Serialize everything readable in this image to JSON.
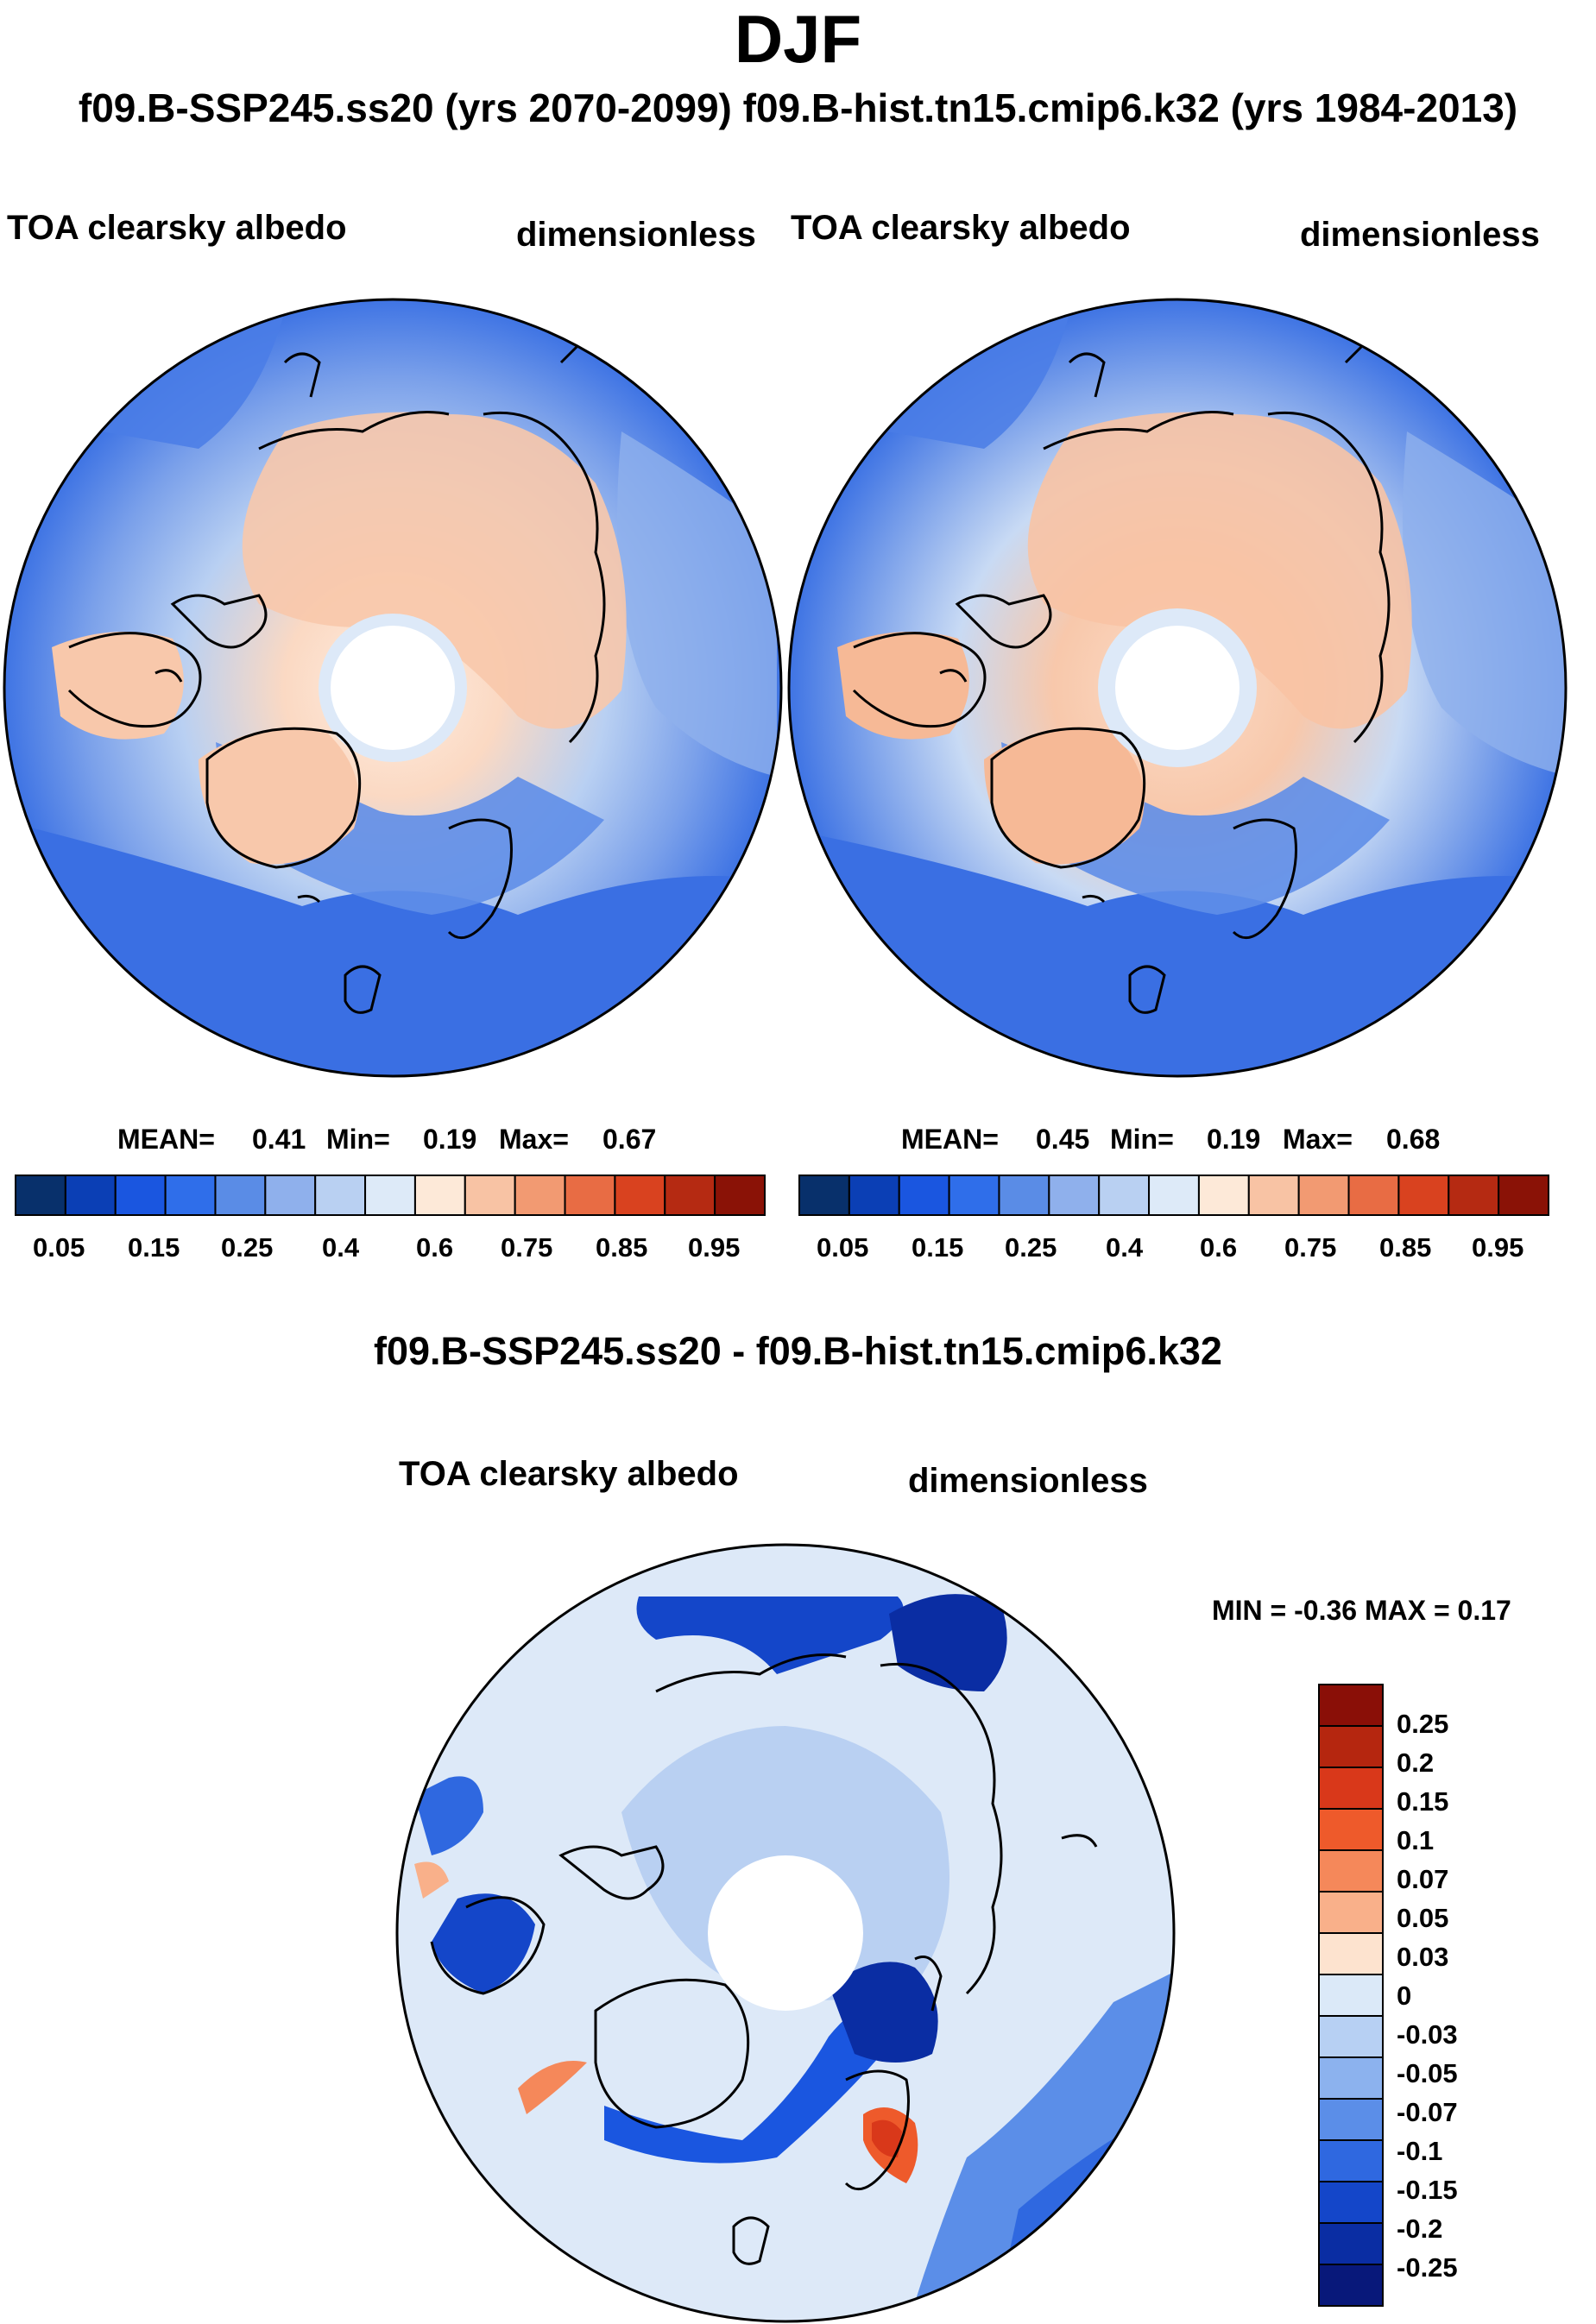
{
  "header": {
    "season": "DJF",
    "subtitle": "f09.B-SSP245.ss20 (yrs 2070-2099)  f09.B-hist.tn15.cmip6.k32 (yrs 1984-2013)"
  },
  "panels": [
    {
      "variable": "TOA clearsky albedo",
      "units": "dimensionless",
      "stats": {
        "mean_label": "MEAN=",
        "mean": "0.41",
        "min_label": "Min=",
        "min": "0.19",
        "max_label": "Max=",
        "max": "0.67"
      }
    },
    {
      "variable": "TOA clearsky albedo",
      "units": "dimensionless",
      "stats": {
        "mean_label": "MEAN=",
        "mean": "0.45",
        "min_label": "Min=",
        "min": "0.19",
        "max_label": "Max=",
        "max": "0.68"
      }
    }
  ],
  "colorbar": {
    "colors": [
      "#08306b",
      "#0b3fb5",
      "#1a56e0",
      "#2f6eea",
      "#5a8ce6",
      "#8fb0ec",
      "#b9d0f2",
      "#ddeaf8",
      "#fde9d8",
      "#f8c3a4",
      "#f29a72",
      "#e86c44",
      "#d9421f",
      "#b52a12",
      "#8a1206"
    ],
    "ticks": [
      "0.05",
      "0.15",
      "0.25",
      "0.4",
      "0.6",
      "0.75",
      "0.85",
      "0.95"
    ]
  },
  "difference": {
    "title": "f09.B-SSP245.ss20 - f09.B-hist.tn15.cmip6.k32",
    "variable": "TOA clearsky albedo",
    "units": "dimensionless",
    "minmax": "MIN =  -0.36 MAX =   0.17",
    "colorbar": {
      "colors": [
        "#8a0f07",
        "#b5260f",
        "#d9381a",
        "#ee5a2b",
        "#f5885a",
        "#f9b08a",
        "#fde3cf",
        "#dbe9f8",
        "#b7d0f3",
        "#8cb2ee",
        "#5b8ee8",
        "#2f68e0",
        "#1446c9",
        "#0a2da3",
        "#08187a"
      ],
      "ticks": [
        "0.25",
        "0.2",
        "0.15",
        "0.1",
        "0.07",
        "0.05",
        "0.03",
        "0",
        "-0.03",
        "-0.05",
        "-0.07",
        "-0.1",
        "-0.15",
        "-0.2",
        "-0.25"
      ]
    }
  }
}
